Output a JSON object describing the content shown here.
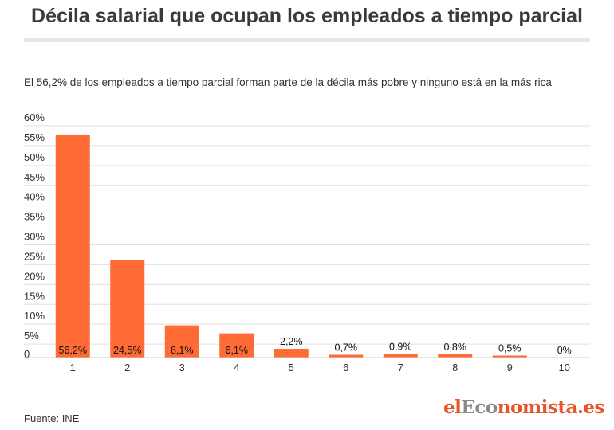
{
  "title": "Décila salarial que ocupan los empleados a tiempo parcial",
  "subtitle": "El 56,2% de los empleados a tiempo parcial forman parte de la décila más pobre y ninguno está en la más rica",
  "source": "Fuente: INE",
  "logo": {
    "part1": "el",
    "part2": "Eco",
    "part3": "nomista.es"
  },
  "colors": {
    "bar": "#ff6b35",
    "grid": "#e0e0e0",
    "axis": "#cccccc",
    "text": "#333333"
  },
  "chart_data": {
    "type": "bar",
    "categories": [
      "1",
      "2",
      "3",
      "4",
      "5",
      "6",
      "7",
      "8",
      "9",
      "10"
    ],
    "values": [
      56.2,
      24.5,
      8.1,
      6.1,
      2.2,
      0.7,
      0.9,
      0.8,
      0.5,
      0
    ],
    "value_labels": [
      "56,2%",
      "24,5%",
      "8,1%",
      "6,1%",
      "2,2%",
      "0,7%",
      "0,9%",
      "0,8%",
      "0,5%",
      "0%"
    ],
    "ylim": [
      0,
      60
    ],
    "yticks": [
      0,
      5,
      10,
      15,
      20,
      25,
      30,
      35,
      40,
      45,
      50,
      55,
      60
    ],
    "ytick_labels": [
      "0",
      "5%",
      "10%",
      "15%",
      "20%",
      "25%",
      "30%",
      "35%",
      "40%",
      "45%",
      "50%",
      "55%",
      "60%"
    ],
    "grid": true,
    "legend": "none"
  }
}
